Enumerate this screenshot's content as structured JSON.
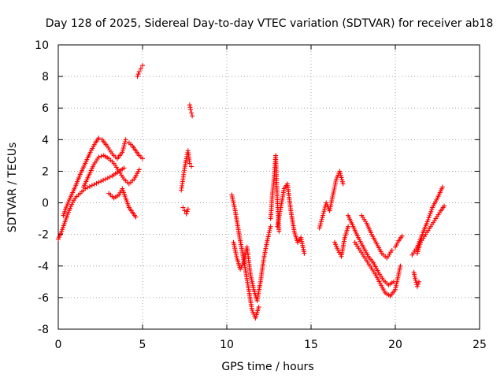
{
  "chart_data": {
    "type": "scatter",
    "title": "Day 128 of 2025, Sidereal Day-to-day VTEC variation (SDTVAR) for receiver ab18",
    "xlabel": "GPS time / hours",
    "ylabel": "SDTVAR / TECUs",
    "xlim": [
      0,
      25
    ],
    "ylim": [
      -8,
      10
    ],
    "x_ticks": [
      0,
      5,
      10,
      15,
      20,
      25
    ],
    "y_ticks": [
      -8,
      -6,
      -4,
      -2,
      0,
      2,
      4,
      6,
      8,
      10
    ],
    "x_tick_labels": [
      "0",
      "5",
      "10",
      "15",
      "20",
      "25"
    ],
    "y_tick_labels": [
      "-8",
      "-6",
      "-4",
      "-2",
      "0",
      "2",
      "4",
      "6",
      "8",
      "10"
    ],
    "grid": true,
    "marker": "+",
    "color": "#ff0000",
    "segments": [
      {
        "name": "early-lower-track",
        "x": [
          0.0,
          0.2,
          0.4,
          0.6,
          0.8,
          1.0,
          1.3,
          1.6,
          2.0,
          2.4,
          2.8,
          3.2,
          3.6,
          3.9
        ],
        "y": [
          -2.3,
          -1.8,
          -1.2,
          -0.6,
          -0.1,
          0.3,
          0.6,
          0.9,
          1.1,
          1.3,
          1.5,
          1.7,
          2.0,
          2.2
        ]
      },
      {
        "name": "early-upper-arc",
        "x": [
          0.3,
          0.5,
          0.7,
          1.0,
          1.3,
          1.6,
          1.9,
          2.2,
          2.4,
          2.6,
          2.9,
          3.2,
          3.5,
          3.8,
          4.0
        ],
        "y": [
          -0.8,
          -0.2,
          0.3,
          1.0,
          1.8,
          2.5,
          3.2,
          3.8,
          4.1,
          4.0,
          3.6,
          3.1,
          2.8,
          3.2,
          4.0
        ]
      },
      {
        "name": "early-middle-arc",
        "x": [
          1.5,
          1.8,
          2.1,
          2.4,
          2.7,
          3.0,
          3.3,
          3.6,
          3.9,
          4.2,
          4.5,
          4.8
        ],
        "y": [
          1.0,
          1.7,
          2.4,
          2.9,
          3.0,
          2.8,
          2.5,
          2.0,
          1.5,
          1.2,
          1.5,
          2.1
        ]
      },
      {
        "name": "early-dip",
        "x": [
          3.0,
          3.3,
          3.6,
          3.8,
          4.0,
          4.2,
          4.4,
          4.6
        ],
        "y": [
          0.6,
          0.3,
          0.5,
          0.9,
          0.3,
          -0.3,
          -0.6,
          -0.9
        ]
      },
      {
        "name": "near-five-upper",
        "x": [
          4.2,
          4.4,
          4.6,
          4.8,
          5.0
        ],
        "y": [
          3.8,
          3.6,
          3.3,
          3.0,
          2.8
        ]
      },
      {
        "name": "near-five-high",
        "x": [
          4.7,
          4.8,
          4.9,
          5.0
        ],
        "y": [
          8.0,
          8.3,
          8.5,
          8.7
        ]
      },
      {
        "name": "seven-five-column",
        "x": [
          7.3,
          7.4,
          7.5,
          7.6,
          7.7,
          7.8,
          7.9
        ],
        "y": [
          0.8,
          1.5,
          2.2,
          2.8,
          3.3,
          2.5,
          2.3
        ]
      },
      {
        "name": "seven-five-low",
        "x": [
          7.4,
          7.5,
          7.6,
          7.7
        ],
        "y": [
          -0.3,
          -0.5,
          -0.7,
          -0.4
        ]
      },
      {
        "name": "seven-nine-top",
        "x": [
          7.8,
          7.85,
          7.9,
          7.95
        ],
        "y": [
          6.2,
          5.9,
          5.7,
          5.5
        ]
      },
      {
        "name": "ten-to-twelve-descent",
        "x": [
          10.3,
          10.5,
          10.7,
          10.9,
          11.1,
          11.3,
          11.5,
          11.7,
          11.9
        ],
        "y": [
          0.5,
          -0.5,
          -1.8,
          -3.0,
          -4.2,
          -5.5,
          -6.8,
          -7.3,
          -6.6
        ]
      },
      {
        "name": "ten-to-twelve-band",
        "x": [
          10.4,
          10.6,
          10.8,
          11.0,
          11.2,
          11.4,
          11.6,
          11.8,
          12.0,
          12.2,
          12.4,
          12.6
        ],
        "y": [
          -2.5,
          -3.5,
          -4.2,
          -3.8,
          -2.8,
          -4.5,
          -5.5,
          -6.2,
          -5.0,
          -3.5,
          -2.4,
          -1.5
        ]
      },
      {
        "name": "twelve-spike",
        "x": [
          12.6,
          12.7,
          12.8,
          12.9,
          13.0,
          13.1
        ],
        "y": [
          -1.0,
          0.5,
          1.5,
          3.0,
          0.2,
          -1.8
        ]
      },
      {
        "name": "thirteen-cluster",
        "x": [
          13.0,
          13.2,
          13.4,
          13.6,
          13.8,
          14.0,
          14.2,
          14.4,
          14.6
        ],
        "y": [
          -1.5,
          -0.3,
          0.9,
          1.2,
          -0.5,
          -1.8,
          -2.5,
          -2.2,
          -3.2
        ]
      },
      {
        "name": "sixteen-cluster",
        "x": [
          15.5,
          15.7,
          15.9,
          16.1,
          16.3,
          16.5,
          16.7,
          16.9
        ],
        "y": [
          -1.6,
          -0.8,
          0.0,
          -0.5,
          0.5,
          1.5,
          2.0,
          1.2
        ]
      },
      {
        "name": "sixteen-low",
        "x": [
          16.4,
          16.6,
          16.8,
          17.0,
          17.2
        ],
        "y": [
          -2.5,
          -3.0,
          -3.4,
          -2.2,
          -1.5
        ]
      },
      {
        "name": "seventeen-to-twenty-decline",
        "x": [
          17.2,
          17.5,
          17.8,
          18.1,
          18.4,
          18.7,
          19.0,
          19.3,
          19.6,
          19.9
        ],
        "y": [
          -0.8,
          -1.5,
          -2.2,
          -2.8,
          -3.4,
          -3.8,
          -4.4,
          -4.9,
          -5.2,
          -5.0
        ]
      },
      {
        "name": "seventeen-to-twenty-lower",
        "x": [
          17.6,
          17.9,
          18.2,
          18.5,
          18.8,
          19.1,
          19.4,
          19.7,
          20.0,
          20.3
        ],
        "y": [
          -2.5,
          -3.0,
          -3.5,
          -4.0,
          -4.5,
          -5.1,
          -5.7,
          -5.9,
          -5.5,
          -4.0
        ]
      },
      {
        "name": "eighteen-arc",
        "x": [
          18.0,
          18.3,
          18.6,
          18.9,
          19.2,
          19.5,
          19.8
        ],
        "y": [
          -0.8,
          -1.3,
          -2.0,
          -2.6,
          -3.2,
          -3.5,
          -3.0
        ]
      },
      {
        "name": "twenty-tail",
        "x": [
          20.0,
          20.2,
          20.4
        ],
        "y": [
          -2.8,
          -2.4,
          -2.1
        ]
      },
      {
        "name": "twenty-one-rise",
        "x": [
          21.0,
          21.3,
          21.6,
          21.9,
          22.2,
          22.5,
          22.8
        ],
        "y": [
          -3.3,
          -2.8,
          -2.0,
          -1.2,
          -0.3,
          0.3,
          1.0
        ]
      },
      {
        "name": "twenty-one-lower",
        "x": [
          21.3,
          21.5,
          21.8,
          22.1,
          22.4,
          22.7,
          22.9
        ],
        "y": [
          -3.2,
          -2.5,
          -2.0,
          -1.5,
          -1.0,
          -0.5,
          -0.2
        ]
      },
      {
        "name": "twenty-one-low",
        "x": [
          21.1,
          21.2,
          21.3,
          21.4
        ],
        "y": [
          -4.4,
          -4.9,
          -5.3,
          -5.0
        ]
      }
    ]
  }
}
